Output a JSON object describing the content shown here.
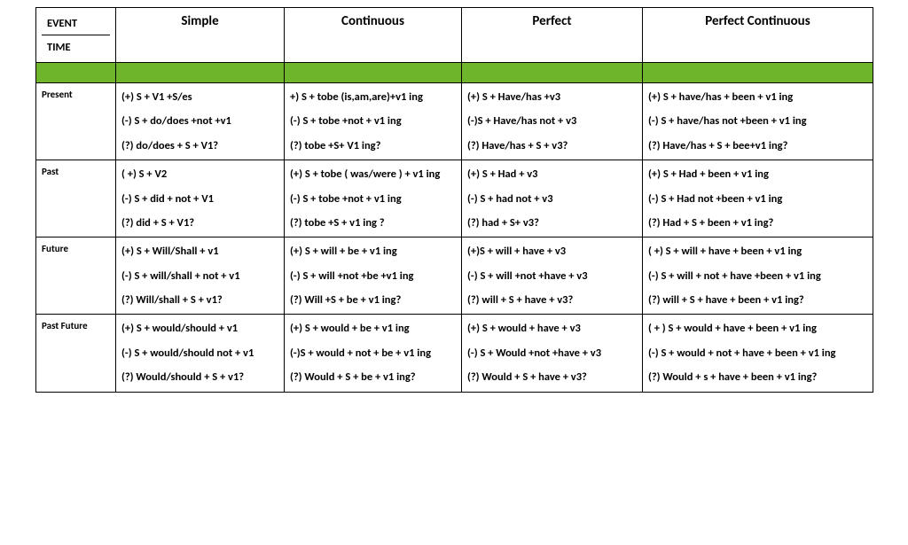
{
  "corner": {
    "top": "EVENT",
    "bottom": "TIME"
  },
  "headers": [
    "Simple",
    "Continuous",
    "Perfect",
    "Perfect Continuous"
  ],
  "green_color": "#6fb52c",
  "rows": [
    {
      "label": "Present",
      "cells": [
        [
          "(+) S + V1 +S/es",
          "(-) S + do/does +not +v1",
          "(?) do/does + S + V1?"
        ],
        [
          "+) S + tobe (is,am,are)+v1 ing",
          "(-) S + tobe +not + v1 ing",
          "(?) tobe +S+ V1 ing?"
        ],
        [
          "(+) S + Have/has +v3",
          "(-)S + Have/has not + v3",
          "(?) Have/has + S + v3?"
        ],
        [
          "(+) S + have/has + been + v1 ing",
          "(-) S + have/has not +been + v1 ing",
          "(?) Have/has + S + bee+v1  ing?"
        ]
      ]
    },
    {
      "label": "Past",
      "cells": [
        [
          "( +) S + V2",
          "(-) S + did + not + V1",
          "(?) did + S + V1?"
        ],
        [
          "(+) S + tobe ( was/were ) + v1 ing",
          "(-) S + tobe +not + v1 ing",
          "(?) tobe +S + v1 ing ?"
        ],
        [
          "(+) S + Had + v3",
          "(-) S + had not + v3",
          "(?) had + S+ v3?"
        ],
        [
          "(+) S + Had + been + v1 ing",
          "(-) S + Had not +been + v1 ing",
          "(?) Had + S + been + v1 ing?"
        ]
      ]
    },
    {
      "label": "Future",
      "cells": [
        [
          "(+) S + Will/Shall + v1",
          "(-) S + will/shall + not + v1",
          "(?) Will/shall + S + v1?"
        ],
        [
          "(+) S + will + be + v1 ing",
          "(-) S + will +not +be +v1 ing",
          "(?) Will +S + be + v1 ing?"
        ],
        [
          "(+)S + will + have + v3",
          "(-) S + will +not +have + v3",
          "(?) will + S + have + v3?"
        ],
        [
          "( +) S + will + have + been + v1 ing",
          "(-) S + will + not + have +been + v1 ing",
          "(?) will + S + have + been + v1 ing?"
        ]
      ]
    },
    {
      "label": "Past Future",
      "cells": [
        [
          "(+) S + would/should + v1",
          "(-) S + would/should not + v1",
          "(?) Would/should + S + v1?"
        ],
        [
          "(+) S + would + be + v1 ing",
          "(-)S + would + not + be + v1 ing",
          "(?) Would + S + be + v1 ing?"
        ],
        [
          "(+) S + would + have + v3",
          "(-) S + Would +not +have + v3",
          "(?) Would + S + have + v3?"
        ],
        [
          "( + ) S + would + have + been + v1 ing",
          "(-) S + would + not + have + been + v1 ing",
          "(?) Would + s + have + been + v1 ing?"
        ]
      ]
    }
  ]
}
